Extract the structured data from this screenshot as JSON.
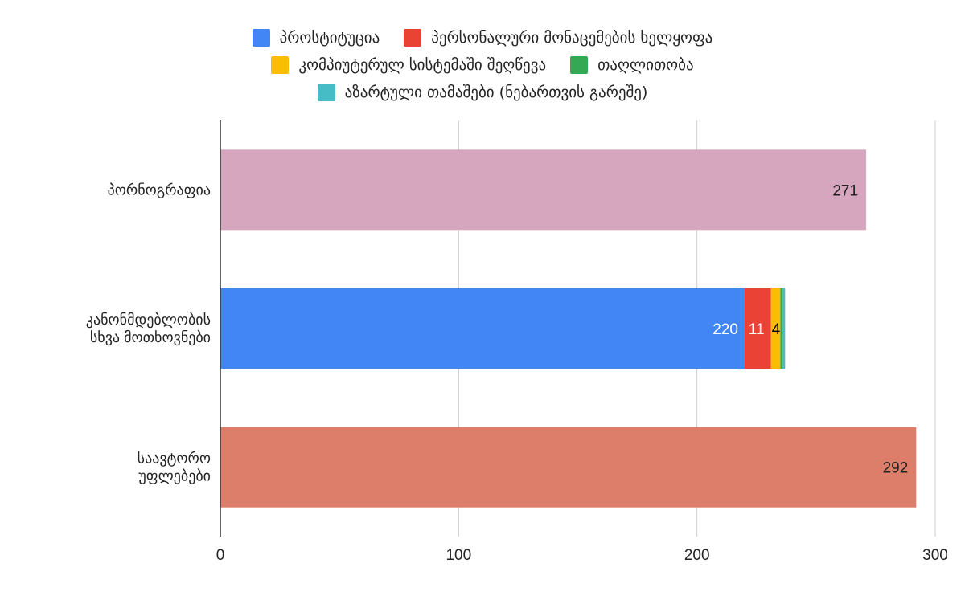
{
  "chart_data": {
    "type": "bar",
    "orientation": "horizontal",
    "stacked": true,
    "categories": [
      "პორნოგრაფია",
      "კანონმდებლობის სხვა მოთხოვნები",
      "საავტორო უფლებები"
    ],
    "category_label_lines": [
      [
        "პორნოგრაფია"
      ],
      [
        "კანონმდებლობის",
        "სხვა მოთხოვნები"
      ],
      [
        "საავტორო",
        "უფლებები"
      ]
    ],
    "single_bars": [
      {
        "category": "პორნოგრაფია",
        "value": 271,
        "color": "#d5a6bd",
        "label": "271"
      },
      {
        "category": "საავტორო უფლებები",
        "value": 292,
        "color": "#dd7e6b",
        "label": "292"
      }
    ],
    "series": [
      {
        "name": "პროსტიტუცია",
        "color": "#4285f4",
        "values": [
          null,
          220,
          null
        ],
        "labels": [
          null,
          "220",
          null
        ]
      },
      {
        "name": "პერსონალური მონაცემების ხელყოფა",
        "color": "#ea4335",
        "values": [
          null,
          11,
          null
        ],
        "labels": [
          null,
          "11",
          null
        ]
      },
      {
        "name": "კომპიუტერულ სისტემაში შეღწევა",
        "color": "#fbbc04",
        "values": [
          null,
          4,
          null
        ],
        "labels": [
          null,
          "4",
          null
        ]
      },
      {
        "name": "თაღლითობა",
        "color": "#34a853",
        "values": [
          null,
          1,
          null
        ],
        "labels": [
          null,
          null,
          null
        ]
      },
      {
        "name": "აზარტული თამაშები (ნებართვის გარეშე)",
        "color": "#46bdc6",
        "values": [
          null,
          1,
          null
        ],
        "labels": [
          null,
          null,
          null
        ]
      }
    ],
    "legend_rows": [
      [
        0,
        1
      ],
      [
        2,
        3
      ],
      [
        4
      ]
    ],
    "xlim": [
      0,
      300
    ],
    "xticks": [
      "0",
      "100",
      "200",
      "300"
    ],
    "xtick_values": [
      0,
      100,
      200,
      300
    ],
    "grid": true,
    "legend_position": "top",
    "title": "",
    "xlabel": "",
    "ylabel": ""
  }
}
